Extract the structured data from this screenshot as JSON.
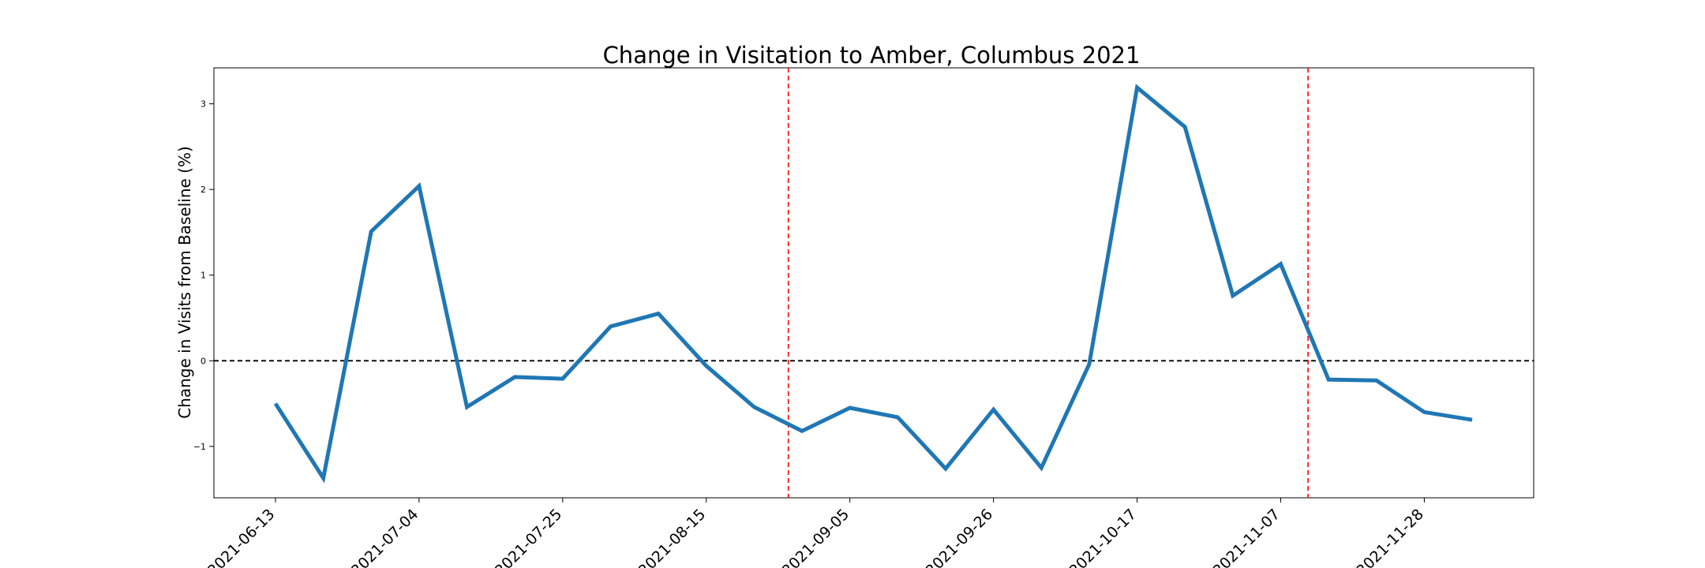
{
  "chart_data": {
    "type": "line",
    "title": "Change in Visitation to Amber, Columbus 2021",
    "xlabel": "",
    "ylabel": "Change in Visits from Baseline (%)",
    "x": [
      "2021-06-13",
      "2021-06-20",
      "2021-06-27",
      "2021-07-04",
      "2021-07-11",
      "2021-07-18",
      "2021-07-25",
      "2021-08-01",
      "2021-08-08",
      "2021-08-15",
      "2021-08-22",
      "2021-08-29",
      "2021-09-05",
      "2021-09-12",
      "2021-09-19",
      "2021-09-26",
      "2021-10-03",
      "2021-10-10",
      "2021-10-17",
      "2021-10-24",
      "2021-10-31",
      "2021-11-07",
      "2021-11-14",
      "2021-11-21",
      "2021-11-28",
      "2021-12-05"
    ],
    "series": [
      {
        "values": [
          -0.5,
          -1.37,
          1.51,
          2.04,
          -0.54,
          -0.19,
          -0.21,
          0.4,
          0.55,
          -0.06,
          -0.54,
          -0.82,
          -0.55,
          -0.66,
          -1.26,
          -0.57,
          -1.25,
          -0.04,
          3.19,
          2.73,
          0.76,
          1.13,
          -0.22,
          -0.23,
          -0.6,
          -0.69
        ],
        "color": "#1f77b4"
      }
    ],
    "xticks": [
      "2021-06-13",
      "2021-07-04",
      "2021-07-25",
      "2021-08-15",
      "2021-09-05",
      "2021-09-26",
      "2021-10-17",
      "2021-11-07",
      "2021-11-28"
    ],
    "yticks": [
      -1,
      0,
      1,
      2,
      3
    ],
    "ylim": [
      -1.6,
      3.42
    ],
    "xlim": [
      "2021-06-04",
      "2021-12-14"
    ],
    "reference_lines": [
      {
        "type": "horizontal",
        "y": 0,
        "color": "#000000",
        "style": "dashed"
      },
      {
        "type": "vertical",
        "x": "2021-08-27",
        "color": "#ff0000",
        "style": "dashed"
      },
      {
        "type": "vertical",
        "x": "2021-11-11",
        "color": "#ff0000",
        "style": "dashed"
      }
    ],
    "grid": false,
    "legend": "none"
  }
}
